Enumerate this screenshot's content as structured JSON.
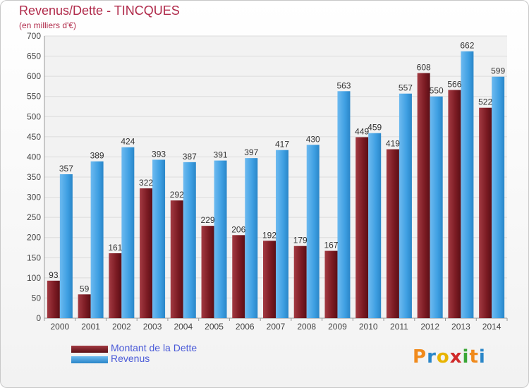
{
  "header": {
    "title": "Revenus/Dette - TINCQUES",
    "subtitle": "(en milliers d'€)"
  },
  "legend": {
    "debt_label": "Montant de la Dette",
    "revenue_label": "Revenus"
  },
  "logo": {
    "text": "Proxiti"
  },
  "colors": {
    "debt": "#7a1a22",
    "revenue": "#3e9fe2",
    "title": "#b02a4a",
    "legend_text": "#4a5ad8"
  },
  "chart_data": {
    "type": "bar",
    "title": "Revenus/Dette - TINCQUES",
    "ylabel": "(en milliers d'€)",
    "xlabel": "",
    "ylim": [
      0,
      700
    ],
    "yticks": [
      0,
      50,
      100,
      150,
      200,
      250,
      300,
      350,
      400,
      450,
      500,
      550,
      600,
      650,
      700
    ],
    "grid": true,
    "categories": [
      "2000",
      "2001",
      "2002",
      "2003",
      "2004",
      "2005",
      "2006",
      "2007",
      "2008",
      "2009",
      "2010",
      "2011",
      "2012",
      "2013",
      "2014"
    ],
    "series": [
      {
        "name": "Montant de la Dette",
        "values": [
          93,
          59,
          161,
          322,
          292,
          229,
          206,
          192,
          179,
          167,
          449,
          419,
          608,
          566,
          522
        ]
      },
      {
        "name": "Revenus",
        "values": [
          357,
          389,
          424,
          393,
          387,
          391,
          397,
          417,
          430,
          563,
          459,
          557,
          550,
          662,
          599
        ]
      }
    ]
  }
}
